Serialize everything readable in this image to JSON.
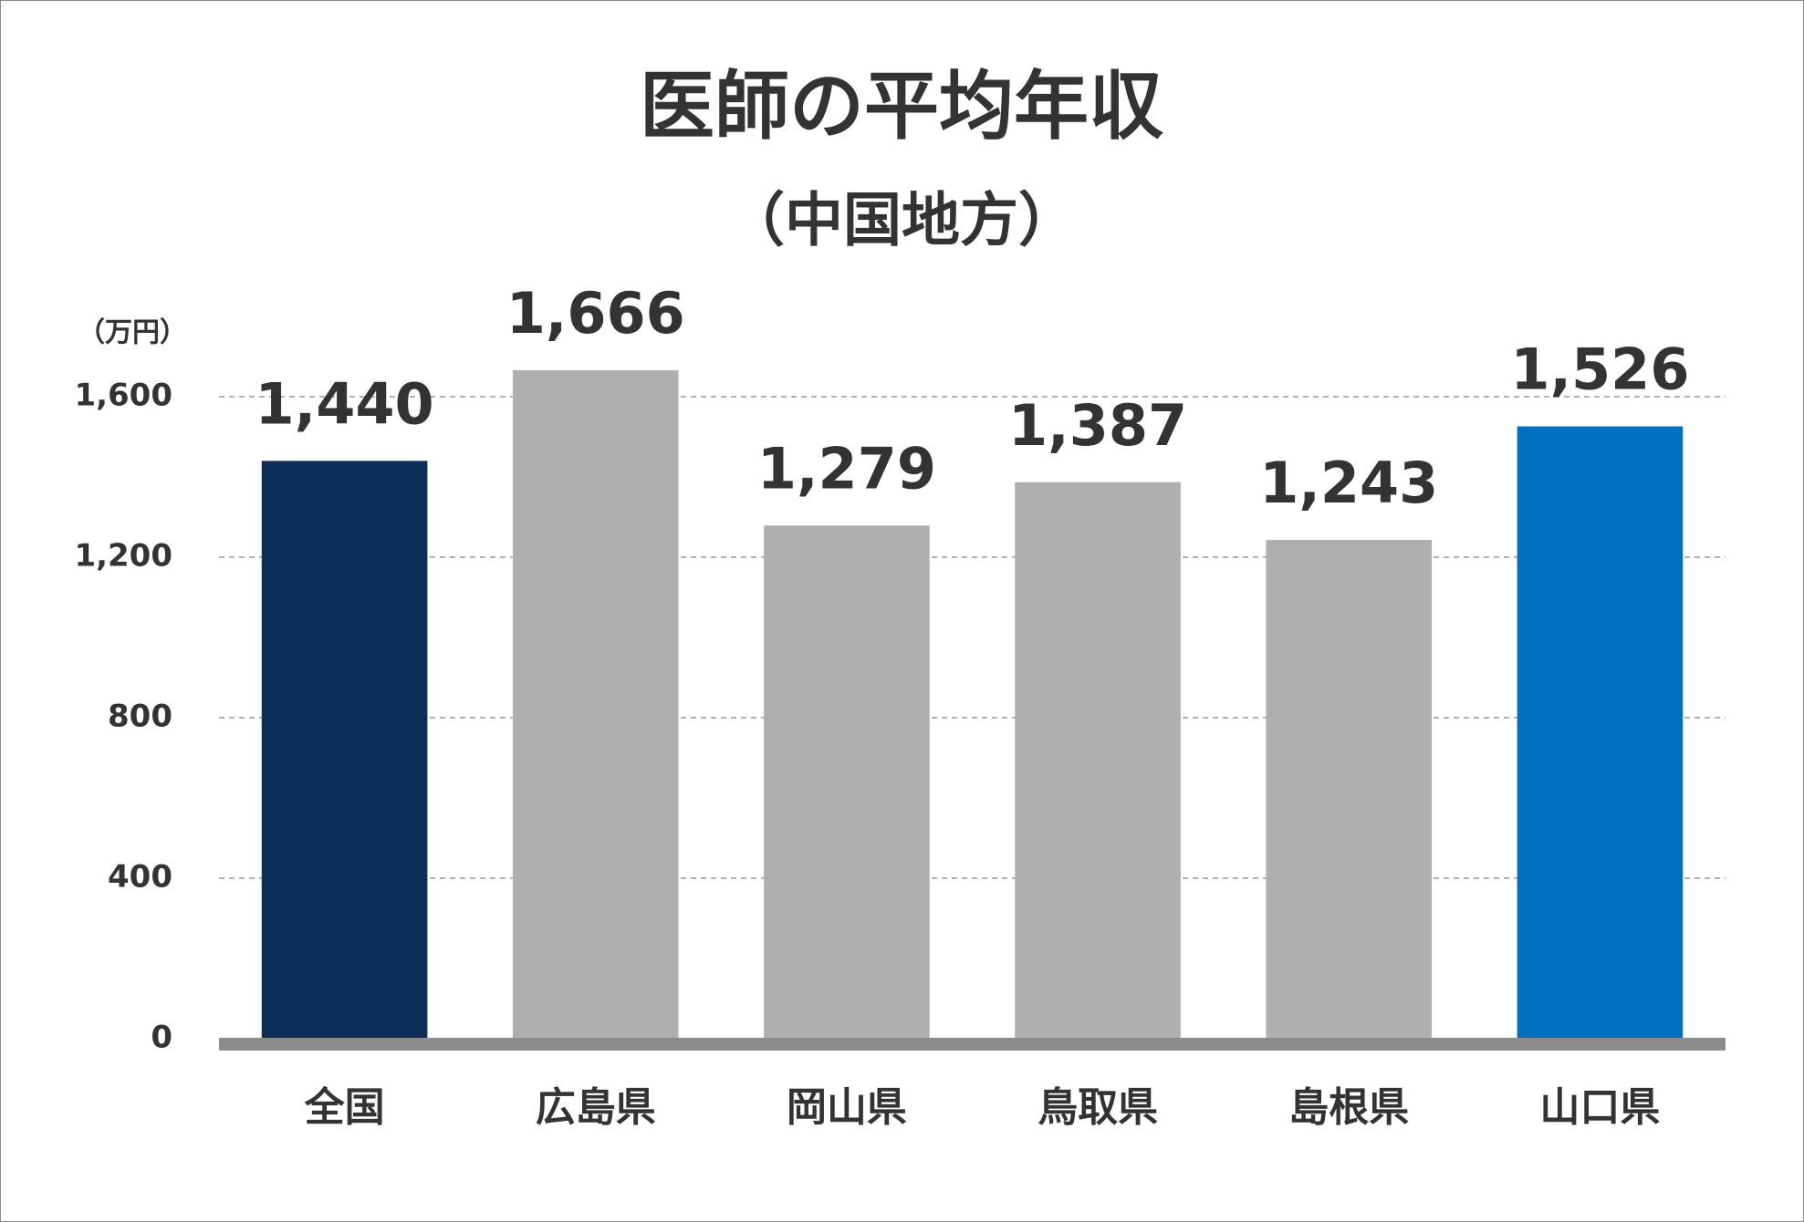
{
  "chart_data": {
    "type": "bar",
    "title": "医師の平均年収",
    "subtitle": "（中国地方）",
    "y_axis_label": "（万円）",
    "categories": [
      "全国",
      "広島県",
      "岡山県",
      "鳥取県",
      "島根県",
      "山口県"
    ],
    "values": [
      1440,
      1666,
      1279,
      1387,
      1243,
      1526
    ],
    "value_labels": [
      "1,440",
      "1,666",
      "1,279",
      "1,387",
      "1,243",
      "1,526"
    ],
    "colors": [
      "#0b2d57",
      "#afafaf",
      "#afafaf",
      "#afafaf",
      "#afafaf",
      "#0070c0"
    ],
    "ylim": [
      0,
      1800
    ],
    "yticks": [
      0,
      400,
      800,
      {
        "value": 1200,
        "label": "1,200"
      },
      {
        "value": 1600,
        "label": "1,600"
      }
    ],
    "grid": true
  }
}
